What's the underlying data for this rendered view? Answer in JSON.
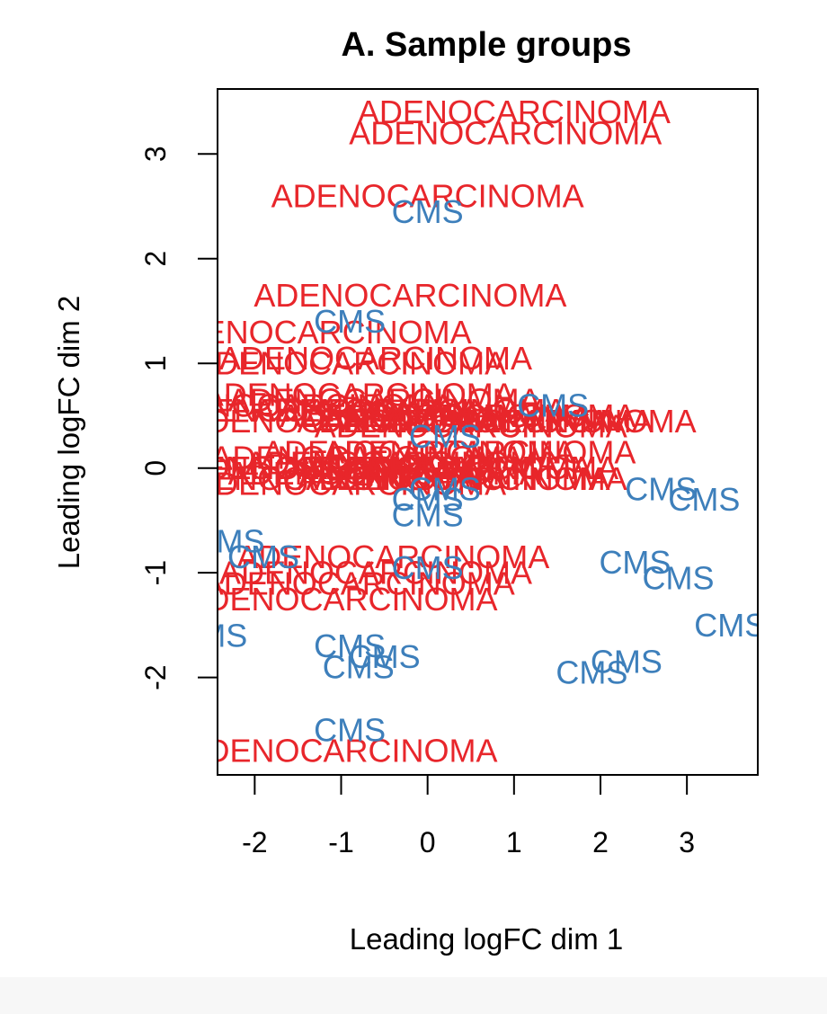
{
  "colors": {
    "adenocarcinoma": "#e8262b",
    "cms": "#3d7fbb",
    "axis": "#000000",
    "background": "#ffffff"
  },
  "chart_data": {
    "type": "scatter",
    "title": "A. Sample groups",
    "xlabel": "Leading logFC dim 1",
    "ylabel": "Leading logFC dim 2",
    "xlim": [
      -2.43,
      3.82
    ],
    "ylim": [
      -2.93,
      3.62
    ],
    "xticks": [
      -2,
      -1,
      0,
      1,
      2,
      3
    ],
    "yticks": [
      -2,
      -1,
      0,
      1,
      2,
      3
    ],
    "grid": false,
    "legend": "none",
    "groups": [
      {
        "label": "ADENOCARCINOMA",
        "color_key": "adenocarcinoma",
        "points": [
          [
            1.0,
            3.4
          ],
          [
            0.9,
            3.2
          ],
          [
            0.0,
            2.6
          ],
          [
            -0.2,
            1.65
          ],
          [
            -1.3,
            1.3
          ],
          [
            -0.6,
            1.05
          ],
          [
            -0.9,
            1.0
          ],
          [
            -0.8,
            0.7
          ],
          [
            -0.5,
            0.65
          ],
          [
            -0.2,
            0.55
          ],
          [
            0.1,
            0.5
          ],
          [
            0.3,
            0.45
          ],
          [
            0.6,
            0.5
          ],
          [
            0.8,
            0.45
          ],
          [
            -1.2,
            0.55
          ],
          [
            -1.5,
            0.6
          ],
          [
            0.5,
            0.4
          ],
          [
            -1.0,
            0.45
          ],
          [
            1.3,
            0.45
          ],
          [
            -0.1,
            0.15
          ],
          [
            0.6,
            0.15
          ],
          [
            -0.7,
            0.1
          ],
          [
            -0.3,
            0.05
          ],
          [
            0.1,
            0.0
          ],
          [
            0.4,
            0.0
          ],
          [
            -1.0,
            0.0
          ],
          [
            -0.5,
            -0.05
          ],
          [
            -1.3,
            0.0
          ],
          [
            -0.9,
            -0.15
          ],
          [
            -1.2,
            -0.1
          ],
          [
            0.5,
            -0.1
          ],
          [
            0.3,
            -0.1
          ],
          [
            -0.4,
            -0.85
          ],
          [
            -0.6,
            -1.0
          ],
          [
            -0.8,
            -1.1
          ],
          [
            -1.0,
            -1.25
          ],
          [
            -1.0,
            -2.7
          ]
        ]
      },
      {
        "label": "CMS",
        "color_key": "cms",
        "points": [
          [
            0.0,
            2.45
          ],
          [
            -0.9,
            1.4
          ],
          [
            1.45,
            0.6
          ],
          [
            0.2,
            0.3
          ],
          [
            0.2,
            -0.2
          ],
          [
            0.0,
            -0.3
          ],
          [
            0.0,
            -0.45
          ],
          [
            2.7,
            -0.2
          ],
          [
            3.2,
            -0.3
          ],
          [
            -2.3,
            -0.7
          ],
          [
            -1.9,
            -0.85
          ],
          [
            2.4,
            -0.9
          ],
          [
            2.9,
            -1.05
          ],
          [
            0.0,
            -0.95
          ],
          [
            3.5,
            -1.5
          ],
          [
            -2.5,
            -1.6
          ],
          [
            -0.9,
            -1.7
          ],
          [
            -0.5,
            -1.8
          ],
          [
            -0.8,
            -1.9
          ],
          [
            2.3,
            -1.85
          ],
          [
            1.9,
            -1.95
          ],
          [
            -0.9,
            -2.5
          ]
        ]
      }
    ]
  }
}
